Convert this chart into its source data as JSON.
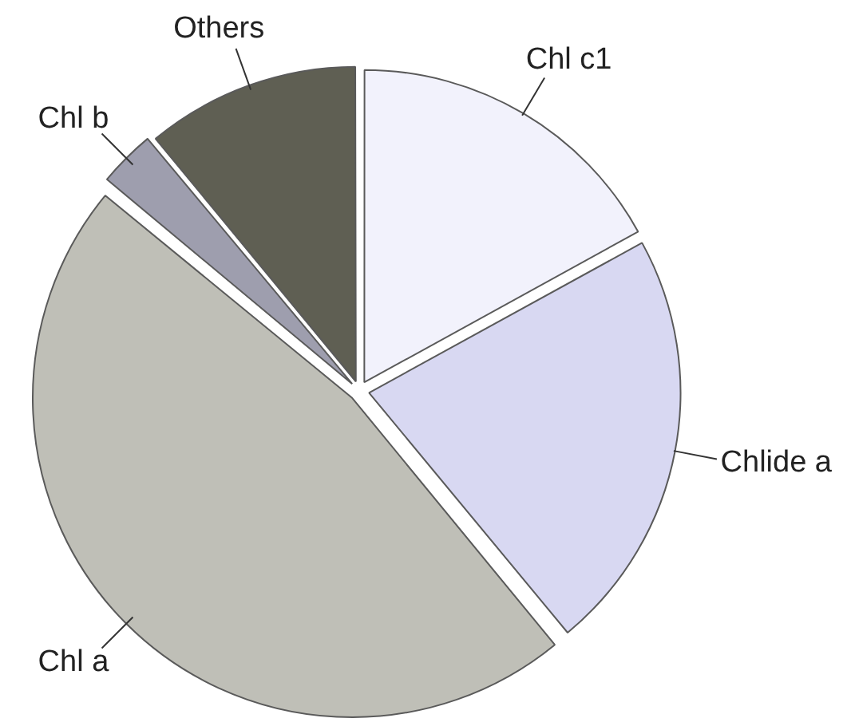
{
  "chart_data": {
    "type": "pie",
    "categories": [
      "Chl c1",
      "Chlide a",
      "Chl a",
      "Chl b",
      "Others"
    ],
    "values": [
      17,
      22,
      47,
      3,
      11
    ],
    "colors": [
      "#f2f2fc",
      "#d8d8f2",
      "#bfbfb7",
      "#9e9eae",
      "#5f5f53"
    ]
  }
}
